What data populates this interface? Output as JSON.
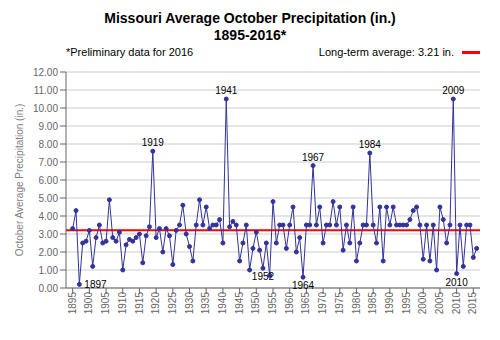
{
  "chart_data": {
    "type": "line",
    "title": "Missouri Average October Precipitation (in.)",
    "subtitle": "1895-2016*",
    "note": "*Preliminary data for 2016",
    "y_label": "October Average Precipitation (in.)",
    "x": [
      1895,
      1896,
      1897,
      1898,
      1899,
      1900,
      1901,
      1902,
      1903,
      1904,
      1905,
      1906,
      1907,
      1908,
      1909,
      1910,
      1911,
      1912,
      1913,
      1914,
      1915,
      1916,
      1917,
      1918,
      1919,
      1920,
      1921,
      1922,
      1923,
      1924,
      1925,
      1926,
      1927,
      1928,
      1929,
      1930,
      1931,
      1932,
      1933,
      1934,
      1935,
      1936,
      1937,
      1938,
      1939,
      1940,
      1941,
      1942,
      1943,
      1944,
      1945,
      1946,
      1947,
      1948,
      1949,
      1950,
      1951,
      1952,
      1953,
      1954,
      1955,
      1956,
      1957,
      1958,
      1959,
      1960,
      1961,
      1962,
      1963,
      1964,
      1965,
      1966,
      1967,
      1968,
      1969,
      1970,
      1971,
      1972,
      1973,
      1974,
      1975,
      1976,
      1977,
      1978,
      1979,
      1980,
      1981,
      1982,
      1983,
      1984,
      1985,
      1986,
      1987,
      1988,
      1989,
      1990,
      1991,
      1992,
      1993,
      1994,
      1995,
      1996,
      1997,
      1998,
      1999,
      2000,
      2001,
      2002,
      2003,
      2004,
      2005,
      2006,
      2007,
      2008,
      2009,
      2010,
      2011,
      2012,
      2013,
      2014,
      2015,
      2016
    ],
    "values": [
      3.3,
      4.3,
      0.2,
      2.5,
      2.6,
      3.2,
      1.2,
      2.8,
      3.5,
      2.5,
      2.6,
      4.9,
      2.8,
      2.6,
      3.1,
      1.0,
      2.4,
      2.7,
      2.6,
      2.8,
      3.0,
      1.4,
      2.9,
      3.4,
      7.6,
      2.8,
      3.3,
      2.0,
      3.3,
      2.9,
      1.3,
      3.2,
      3.5,
      4.6,
      3.0,
      2.3,
      1.5,
      3.5,
      4.9,
      3.5,
      4.5,
      3.3,
      3.5,
      3.5,
      3.8,
      2.5,
      10.5,
      3.4,
      3.7,
      3.5,
      1.5,
      2.5,
      3.5,
      1.0,
      2.2,
      3.1,
      2.1,
      1.1,
      2.5,
      0.7,
      4.8,
      2.5,
      3.5,
      3.5,
      2.2,
      3.5,
      4.5,
      2.0,
      2.8,
      0.6,
      3.5,
      3.5,
      6.8,
      3.5,
      4.5,
      2.5,
      3.5,
      3.5,
      4.8,
      3.5,
      4.5,
      2.1,
      3.5,
      2.5,
      4.5,
      1.5,
      2.5,
      3.5,
      3.5,
      7.5,
      3.5,
      2.5,
      4.5,
      1.5,
      4.5,
      3.5,
      4.5,
      3.5,
      3.5,
      3.5,
      3.5,
      3.8,
      4.3,
      4.5,
      3.5,
      1.6,
      3.5,
      1.5,
      3.5,
      1.0,
      4.5,
      3.8,
      2.5,
      3.5,
      10.5,
      0.8,
      3.5,
      1.2,
      3.5,
      3.5,
      1.7,
      2.2
    ],
    "color": "#333399",
    "marker": "circle",
    "reference_line": {
      "value": 3.21,
      "label": "Long-term average: 3.21 in.",
      "color": "#FF0000"
    },
    "annotations": [
      {
        "x": 1897,
        "y": 0.2,
        "text": "1897",
        "position": "right"
      },
      {
        "x": 1919,
        "y": 7.6,
        "text": "1919",
        "position": "above"
      },
      {
        "x": 1941,
        "y": 10.5,
        "text": "1941",
        "position": "above"
      },
      {
        "x": 1952,
        "y": 1.1,
        "text": "1952",
        "position": "below"
      },
      {
        "x": 1964,
        "y": 0.6,
        "text": "1964",
        "position": "below"
      },
      {
        "x": 1967,
        "y": 6.8,
        "text": "1967",
        "position": "above"
      },
      {
        "x": 1984,
        "y": 7.5,
        "text": "1984",
        "position": "above"
      },
      {
        "x": 2009,
        "y": 10.5,
        "text": "2009",
        "position": "above"
      },
      {
        "x": 2010,
        "y": 0.8,
        "text": "2010",
        "position": "below"
      }
    ],
    "xlim": [
      1893,
      2017
    ],
    "xticks": [
      1895,
      1900,
      1905,
      1910,
      1915,
      1920,
      1925,
      1930,
      1935,
      1940,
      1945,
      1950,
      1955,
      1960,
      1965,
      1970,
      1975,
      1980,
      1985,
      1990,
      1995,
      2000,
      2005,
      2010,
      2015
    ],
    "ylim": [
      0,
      12
    ],
    "yticks": [
      {
        "value": 0,
        "label": "0.00"
      },
      {
        "value": 1,
        "label": "1.00"
      },
      {
        "value": 2,
        "label": "2.00"
      },
      {
        "value": 3,
        "label": "3.00"
      },
      {
        "value": 4,
        "label": "4.00"
      },
      {
        "value": 5,
        "label": "5.00"
      },
      {
        "value": 6,
        "label": "6.00"
      },
      {
        "value": 7,
        "label": "7.00"
      },
      {
        "value": 8,
        "label": "8.00"
      },
      {
        "value": 9,
        "label": "9.00"
      },
      {
        "value": 10,
        "label": "10.00"
      },
      {
        "value": 11,
        "label": "11.00"
      },
      {
        "value": 12,
        "label": "12.00"
      }
    ],
    "grid": true
  }
}
